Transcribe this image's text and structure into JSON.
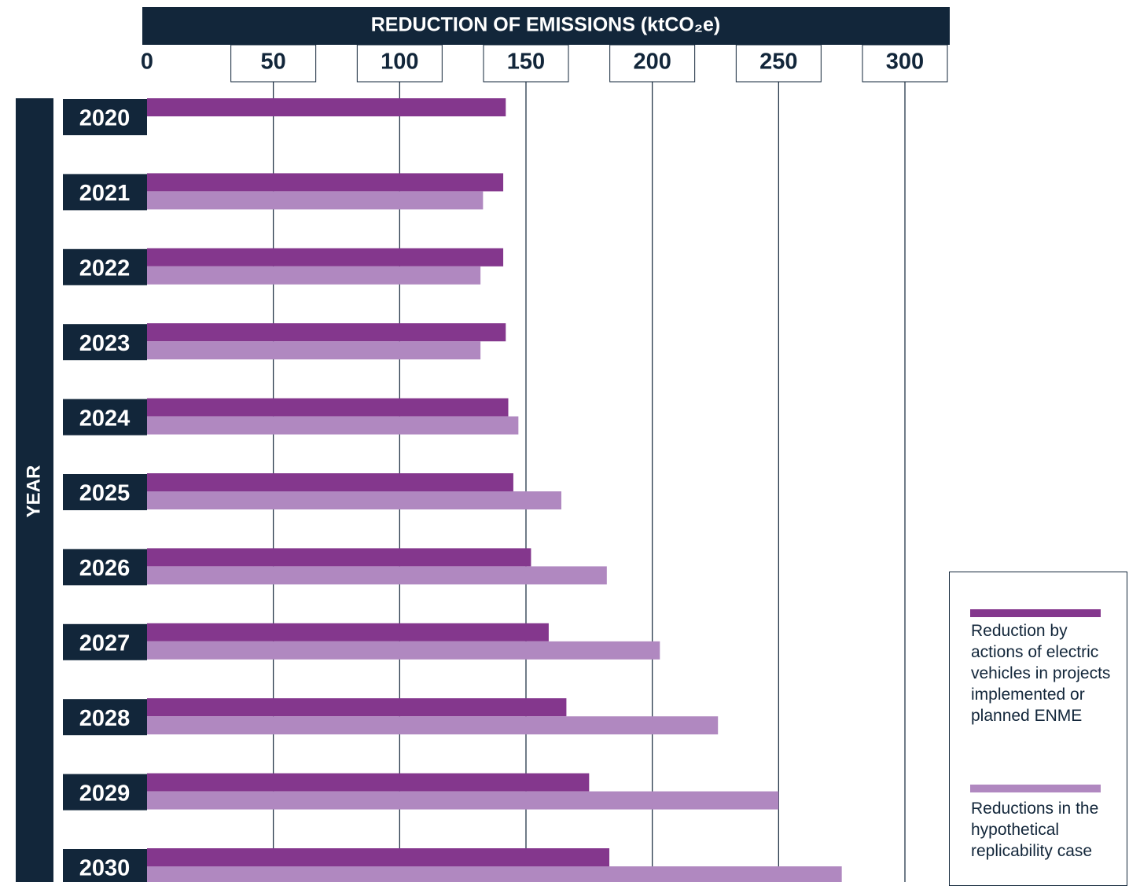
{
  "chart_data": {
    "type": "hbar",
    "title": "REDUCTION OF EMISSIONS (ktCO₂e)",
    "y_label": "YEAR",
    "categories": [
      "2020",
      "2021",
      "2022",
      "2023",
      "2024",
      "2025",
      "2026",
      "2027",
      "2028",
      "2029",
      "2030"
    ],
    "series": [
      {
        "name": "Reduction by actions of electric vehicles in projects implemented or planned ENME",
        "color": "#84378d",
        "values": [
          142,
          141,
          141,
          142,
          143,
          145,
          152,
          159,
          166,
          175,
          183
        ]
      },
      {
        "name": "Reductions in the hypothetical replicability case",
        "color": "#b088c0",
        "values": [
          null,
          133,
          132,
          132,
          147,
          164,
          182,
          203,
          226,
          250,
          275
        ]
      }
    ],
    "xlim": [
      0,
      300
    ],
    "xticks": [
      0,
      50,
      100,
      150,
      200,
      250,
      300
    ],
    "grid": true
  }
}
